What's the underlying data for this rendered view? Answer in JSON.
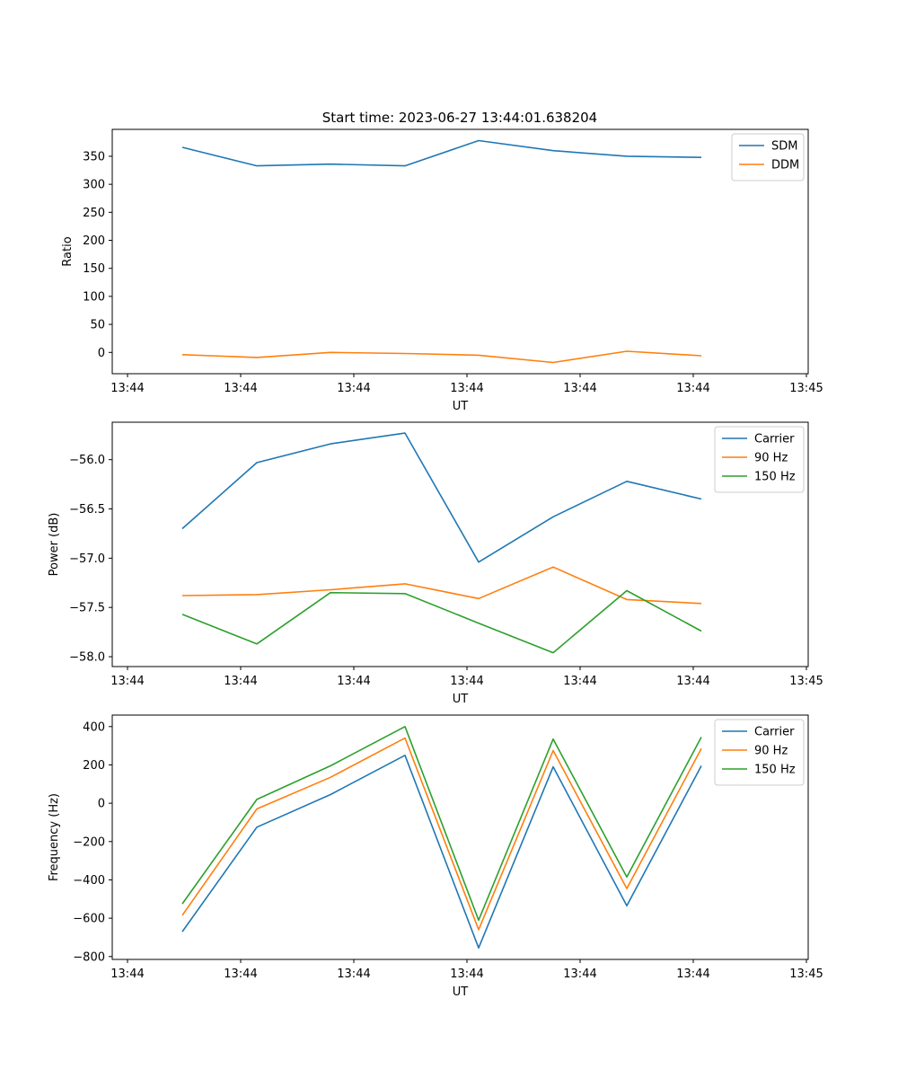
{
  "title": "Start time: 2023-06-27 13:44:01.638204",
  "colors": {
    "blue": "#1f77b4",
    "orange": "#ff7f0e",
    "green": "#2ca02c",
    "axis": "#000000",
    "legend_border": "#cccccc"
  },
  "chart_data": [
    {
      "type": "line",
      "title": "Start time: 2023-06-27 13:44:01.638204",
      "xlabel": "UT",
      "ylabel": "Ratio",
      "x_tick_labels": [
        "13:44",
        "13:44",
        "13:44",
        "13:44",
        "13:44",
        "13:44",
        "13:45"
      ],
      "ylim": [
        -38,
        398
      ],
      "y_ticks": [
        0,
        50,
        100,
        150,
        200,
        250,
        300,
        350
      ],
      "legend_position": "upper right",
      "grid": false,
      "series": [
        {
          "name": "SDM",
          "color": "#1f77b4",
          "values": [
            366,
            333,
            336,
            333,
            378,
            360,
            350,
            348
          ]
        },
        {
          "name": "DDM",
          "color": "#ff7f0e",
          "values": [
            -4,
            -9,
            0,
            -2,
            -5,
            -18,
            2,
            -6
          ]
        }
      ]
    },
    {
      "type": "line",
      "title": "",
      "xlabel": "UT",
      "ylabel": "Power (dB)",
      "x_tick_labels": [
        "13:44",
        "13:44",
        "13:44",
        "13:44",
        "13:44",
        "13:44",
        "13:45"
      ],
      "ylim": [
        -58.1,
        -55.62
      ],
      "y_ticks": [
        -58.0,
        -57.5,
        -57.0,
        -56.5,
        -56.0
      ],
      "legend_position": "upper right",
      "grid": false,
      "series": [
        {
          "name": "Carrier",
          "color": "#1f77b4",
          "values": [
            -56.7,
            -56.03,
            -55.84,
            -55.73,
            -57.04,
            -56.58,
            -56.22,
            -56.4
          ]
        },
        {
          "name": "90 Hz",
          "color": "#ff7f0e",
          "values": [
            -57.38,
            -57.37,
            -57.32,
            -57.26,
            -57.41,
            -57.09,
            -57.42,
            -57.46
          ]
        },
        {
          "name": "150 Hz",
          "color": "#2ca02c",
          "values": [
            -57.57,
            -57.87,
            -57.35,
            -57.36,
            -57.66,
            -57.96,
            -57.33,
            -57.74
          ]
        }
      ]
    },
    {
      "type": "line",
      "title": "",
      "xlabel": "UT",
      "ylabel": "Frequency (Hz)",
      "x_tick_labels": [
        "13:44",
        "13:44",
        "13:44",
        "13:44",
        "13:44",
        "13:44",
        "13:45"
      ],
      "ylim": [
        -815,
        460
      ],
      "y_ticks": [
        -800,
        -600,
        -400,
        -200,
        0,
        200,
        400
      ],
      "legend_position": "upper right",
      "grid": false,
      "series": [
        {
          "name": "Carrier",
          "color": "#1f77b4",
          "values": [
            -670,
            -125,
            45,
            250,
            -755,
            190,
            -535,
            195
          ]
        },
        {
          "name": "90 Hz",
          "color": "#ff7f0e",
          "values": [
            -585,
            -30,
            135,
            340,
            -660,
            275,
            -445,
            285
          ]
        },
        {
          "name": "150 Hz",
          "color": "#2ca02c",
          "values": [
            -525,
            20,
            195,
            400,
            -610,
            335,
            -385,
            345
          ]
        }
      ]
    }
  ]
}
